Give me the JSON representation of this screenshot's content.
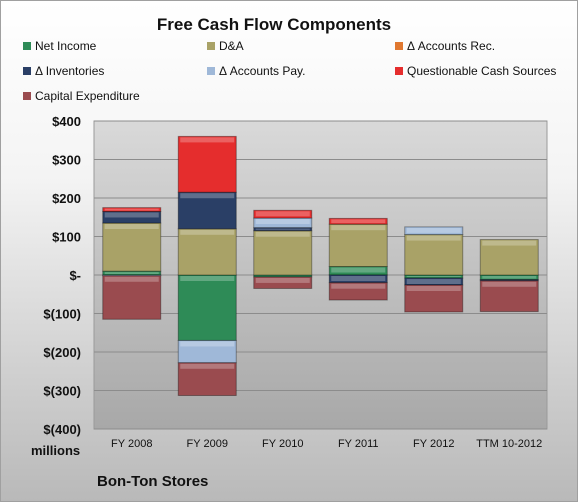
{
  "chart_data": {
    "type": "bar",
    "stacked": true,
    "title": "Free Cash Flow Components",
    "categories": [
      "FY 2008",
      "FY 2009",
      "FY 2010",
      "FY 2011",
      "FY 2012",
      "TTM 10-2012"
    ],
    "ylim": [
      -400,
      400
    ],
    "yticks": [
      400,
      300,
      200,
      100,
      0,
      -100,
      -200,
      -300,
      -400
    ],
    "ytick_labels": [
      "$400",
      "$300",
      "$200",
      "$100",
      "$-",
      "$(100)",
      "$(200)",
      "$(300)",
      "$(400)"
    ],
    "units_label": "millions",
    "grid": true,
    "legend_position": "top",
    "series": [
      {
        "name": "Net Income",
        "color": "#2e8b57",
        "values": [
          10,
          -170,
          -5,
          22,
          -8,
          -12
        ]
      },
      {
        "name": "D&A",
        "color": "#a9a267",
        "values": [
          125,
          120,
          115,
          110,
          105,
          92
        ]
      },
      {
        "name": "Δ Accounts Rec.",
        "color": "#e07830",
        "values": [
          0,
          0,
          0,
          0,
          0,
          0
        ]
      },
      {
        "name": "Δ Inventories",
        "color": "#2a3f66",
        "values": [
          30,
          95,
          8,
          -20,
          -18,
          -3
        ]
      },
      {
        "name": "Δ Accounts Pay.",
        "color": "#9fb8d8",
        "values": [
          -2,
          -58,
          25,
          0,
          20,
          0
        ]
      },
      {
        "name": "Questionable Cash Sources",
        "color": "#e52d2d",
        "values": [
          10,
          145,
          20,
          15,
          0,
          0
        ]
      },
      {
        "name": "Capital Expenditure",
        "color": "#9a4b4f",
        "values": [
          -113,
          -85,
          -30,
          -45,
          -70,
          -80
        ]
      }
    ]
  },
  "footer": {
    "company": "Bon-Ton Stores"
  }
}
